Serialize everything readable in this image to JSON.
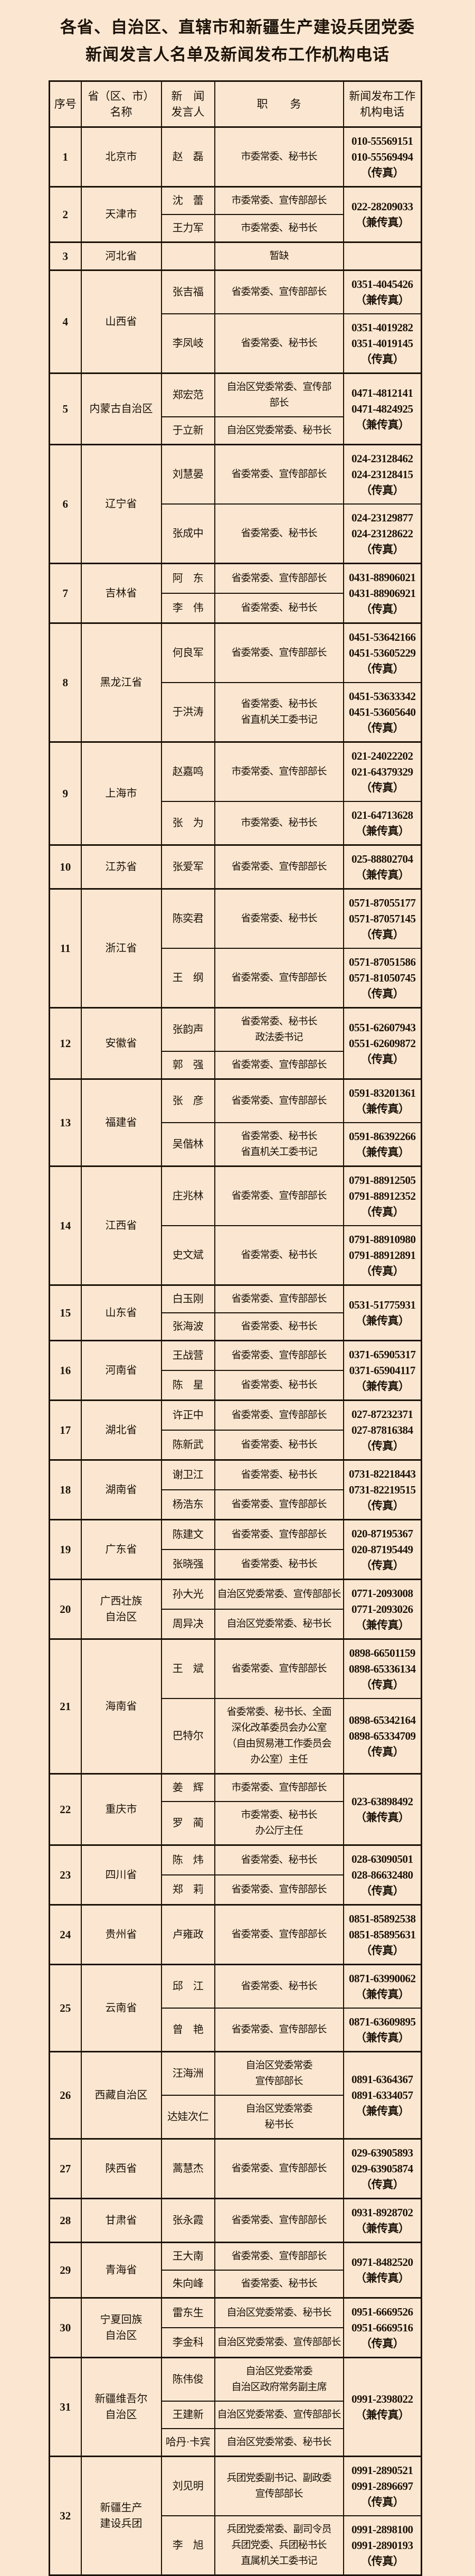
{
  "page": {
    "background_color": "#fbe7d1",
    "text_color": "#1c1208",
    "border_color": "#1c1208"
  },
  "title": {
    "line1": "各省、自治区、直辖市和新疆生产建设兵团党委",
    "line2": "新闻发言人名单及新闻发布工作机构电话"
  },
  "table": {
    "headers": [
      {
        "id": "no",
        "lines": [
          "序号"
        ]
      },
      {
        "id": "region",
        "lines": [
          "省（区、市）",
          "名称"
        ]
      },
      {
        "id": "spokesperson",
        "lines": [
          "新　闻",
          "发言人"
        ]
      },
      {
        "id": "position",
        "lines": [
          "职　　务"
        ]
      },
      {
        "id": "phone",
        "lines": [
          "新闻发布工作",
          "机构电话"
        ]
      }
    ],
    "rows": [
      {
        "no": "1",
        "region": [
          "北京市"
        ],
        "phone": null,
        "entries": [
          {
            "name": "赵　磊",
            "position": [
              "市委常委、秘书长"
            ],
            "phone": [
              "010-55569151",
              "010-55569494",
              "（传真）"
            ]
          }
        ]
      },
      {
        "no": "2",
        "region": [
          "天津市"
        ],
        "phone": [
          "022-28209033",
          "（兼传真）"
        ],
        "entries": [
          {
            "name": "沈　蕾",
            "position": [
              "市委常委、宣传部部长"
            ],
            "phone": null
          },
          {
            "name": "王力军",
            "position": [
              "市委常委、秘书长"
            ],
            "phone": null
          }
        ]
      },
      {
        "no": "3",
        "region": [
          "河北省"
        ],
        "phone": null,
        "entries": [
          {
            "name": "",
            "position": [
              "暂缺"
            ],
            "phone": []
          }
        ]
      },
      {
        "no": "4",
        "region": [
          "山西省"
        ],
        "phone": null,
        "entries": [
          {
            "name": "张吉福",
            "position": [
              "省委常委、宣传部部长"
            ],
            "phone": [
              "0351-4045426",
              "（兼传真）"
            ]
          },
          {
            "name": "李凤岐",
            "position": [
              "省委常委、秘书长"
            ],
            "phone": [
              "0351-4019282",
              "0351-4019145",
              "（传真）"
            ]
          }
        ]
      },
      {
        "no": "5",
        "region": [
          "内蒙古自治区"
        ],
        "phone": [
          "0471-4812141",
          "0471-4824925",
          "（兼传真）"
        ],
        "entries": [
          {
            "name": "郑宏范",
            "position": [
              "自治区党委常委、宣传部",
              "部长"
            ],
            "phone": null
          },
          {
            "name": "于立新",
            "position": [
              "自治区党委常委、秘书长"
            ],
            "phone": null
          }
        ]
      },
      {
        "no": "6",
        "region": [
          "辽宁省"
        ],
        "phone": null,
        "entries": [
          {
            "name": "刘慧晏",
            "position": [
              "省委常委、宣传部部长"
            ],
            "phone": [
              "024-23128462",
              "024-23128415",
              "（传真）"
            ]
          },
          {
            "name": "张成中",
            "position": [
              "省委常委、秘书长"
            ],
            "phone": [
              "024-23129877",
              "024-23128622",
              "（传真）"
            ]
          }
        ]
      },
      {
        "no": "7",
        "region": [
          "吉林省"
        ],
        "phone": [
          "0431-88906021",
          "0431-88906921",
          "（传真）"
        ],
        "entries": [
          {
            "name": "阿　东",
            "position": [
              "省委常委、宣传部部长"
            ],
            "phone": null
          },
          {
            "name": "李　伟",
            "position": [
              "省委常委、秘书长"
            ],
            "phone": null
          }
        ]
      },
      {
        "no": "8",
        "region": [
          "黑龙江省"
        ],
        "phone": null,
        "entries": [
          {
            "name": "何良军",
            "position": [
              "省委常委、宣传部部长"
            ],
            "phone": [
              "0451-53642166",
              "0451-53605229",
              "（传真）"
            ]
          },
          {
            "name": "于洪涛",
            "position": [
              "省委常委、秘书长",
              "省直机关工委书记"
            ],
            "phone": [
              "0451-53633342",
              "0451-53605640",
              "（传真）"
            ]
          }
        ]
      },
      {
        "no": "9",
        "region": [
          "上海市"
        ],
        "phone": null,
        "entries": [
          {
            "name": "赵嘉鸣",
            "position": [
              "市委常委、宣传部部长"
            ],
            "phone": [
              "021-24022202",
              "021-64379329",
              "（传真）"
            ]
          },
          {
            "name": "张　为",
            "position": [
              "市委常委、秘书长"
            ],
            "phone": [
              "021-64713628",
              "（兼传真）"
            ]
          }
        ]
      },
      {
        "no": "10",
        "region": [
          "江苏省"
        ],
        "phone": null,
        "entries": [
          {
            "name": "张爱军",
            "position": [
              "省委常委、宣传部部长"
            ],
            "phone": [
              "025-88802704",
              "（兼传真）"
            ]
          }
        ]
      },
      {
        "no": "11",
        "region": [
          "浙江省"
        ],
        "phone": null,
        "entries": [
          {
            "name": "陈奕君",
            "position": [
              "省委常委、秘书长"
            ],
            "phone": [
              "0571-87055177",
              "0571-87057145",
              "（传真）"
            ]
          },
          {
            "name": "王　纲",
            "position": [
              "省委常委、宣传部部长"
            ],
            "phone": [
              "0571-87051586",
              "0571-81050745",
              "（传真）"
            ]
          }
        ]
      },
      {
        "no": "12",
        "region": [
          "安徽省"
        ],
        "phone": [
          "0551-62607943",
          "0551-62609872",
          "（传真）"
        ],
        "entries": [
          {
            "name": "张韵声",
            "position": [
              "省委常委、秘书长",
              "政法委书记"
            ],
            "phone": null
          },
          {
            "name": "郭　强",
            "position": [
              "省委常委、宣传部部长"
            ],
            "phone": null
          }
        ]
      },
      {
        "no": "13",
        "region": [
          "福建省"
        ],
        "phone": null,
        "entries": [
          {
            "name": "张　彦",
            "position": [
              "省委常委、宣传部部长"
            ],
            "phone": [
              "0591-83201361",
              "（兼传真）"
            ]
          },
          {
            "name": "吴偕林",
            "position": [
              "省委常委、秘书长",
              "省直机关工委书记"
            ],
            "phone": [
              "0591-86392266",
              "（兼传真）"
            ]
          }
        ]
      },
      {
        "no": "14",
        "region": [
          "江西省"
        ],
        "phone": null,
        "entries": [
          {
            "name": "庄兆林",
            "position": [
              "省委常委、宣传部部长"
            ],
            "phone": [
              "0791-88912505",
              "0791-88912352",
              "（传真）"
            ]
          },
          {
            "name": "史文斌",
            "position": [
              "省委常委、秘书长"
            ],
            "phone": [
              "0791-88910980",
              "0791-88912891",
              "（传真）"
            ]
          }
        ]
      },
      {
        "no": "15",
        "region": [
          "山东省"
        ],
        "phone": [
          "0531-51775931",
          "（兼传真）"
        ],
        "entries": [
          {
            "name": "白玉刚",
            "position": [
              "省委常委、宣传部部长"
            ],
            "phone": null
          },
          {
            "name": "张海波",
            "position": [
              "省委常委、秘书长"
            ],
            "phone": null
          }
        ]
      },
      {
        "no": "16",
        "region": [
          "河南省"
        ],
        "phone": [
          "0371-65905317",
          "0371-65904117",
          "（兼传真）"
        ],
        "entries": [
          {
            "name": "王战营",
            "position": [
              "省委常委、宣传部部长"
            ],
            "phone": null
          },
          {
            "name": "陈　星",
            "position": [
              "省委常委、秘书长"
            ],
            "phone": null
          }
        ]
      },
      {
        "no": "17",
        "region": [
          "湖北省"
        ],
        "phone": [
          "027-87232371",
          "027-87816384",
          "（传真）"
        ],
        "entries": [
          {
            "name": "许正中",
            "position": [
              "省委常委、宣传部部长"
            ],
            "phone": null
          },
          {
            "name": "陈新武",
            "position": [
              "省委常委、秘书长"
            ],
            "phone": null
          }
        ]
      },
      {
        "no": "18",
        "region": [
          "湖南省"
        ],
        "phone": [
          "0731-82218443",
          "0731-82219515",
          "（传真）"
        ],
        "entries": [
          {
            "name": "谢卫江",
            "position": [
              "省委常委、秘书长"
            ],
            "phone": null
          },
          {
            "name": "杨浩东",
            "position": [
              "省委常委、宣传部部长"
            ],
            "phone": null
          }
        ]
      },
      {
        "no": "19",
        "region": [
          "广东省"
        ],
        "phone": [
          "020-87195367",
          "020-87195449",
          "（传真）"
        ],
        "entries": [
          {
            "name": "陈建文",
            "position": [
              "省委常委、宣传部部长"
            ],
            "phone": null
          },
          {
            "name": "张晓强",
            "position": [
              "省委常委、秘书长"
            ],
            "phone": null
          }
        ]
      },
      {
        "no": "20",
        "region": [
          "广西壮族",
          "自治区"
        ],
        "phone": [
          "0771-2093008",
          "0771-2093026",
          "（兼传真）"
        ],
        "entries": [
          {
            "name": "孙大光",
            "position": [
              "自治区党委常委、宣传部部长"
            ],
            "phone": null
          },
          {
            "name": "周异决",
            "position": [
              "自治区党委常委、秘书长"
            ],
            "phone": null
          }
        ]
      },
      {
        "no": "21",
        "region": [
          "海南省"
        ],
        "phone": null,
        "entries": [
          {
            "name": "王　斌",
            "position": [
              "省委常委、宣传部部长"
            ],
            "phone": [
              "0898-66501159",
              "0898-65336134",
              "（传真）"
            ]
          },
          {
            "name": "巴特尔",
            "position": [
              "省委常委、秘书长、全面",
              "深化改革委员会办公室",
              "（自由贸易港工作委员会",
              "办公室）主任"
            ],
            "phone": [
              "0898-65342164",
              "0898-65334709",
              "（传真）"
            ]
          }
        ]
      },
      {
        "no": "22",
        "region": [
          "重庆市"
        ],
        "phone": [
          "023-63898492",
          "（兼传真）"
        ],
        "entries": [
          {
            "name": "姜　辉",
            "position": [
              "市委常委、宣传部部长"
            ],
            "phone": null
          },
          {
            "name": "罗　蔺",
            "position": [
              "市委常委、秘书长",
              "办公厅主任"
            ],
            "phone": null
          }
        ]
      },
      {
        "no": "23",
        "region": [
          "四川省"
        ],
        "phone": [
          "028-63090501",
          "028-86632480",
          "（传真）"
        ],
        "entries": [
          {
            "name": "陈　炜",
            "position": [
              "省委常委、秘书长"
            ],
            "phone": null
          },
          {
            "name": "郑　莉",
            "position": [
              "省委常委、宣传部部长"
            ],
            "phone": null
          }
        ]
      },
      {
        "no": "24",
        "region": [
          "贵州省"
        ],
        "phone": null,
        "entries": [
          {
            "name": "卢雍政",
            "position": [
              "省委常委、宣传部部长"
            ],
            "phone": [
              "0851-85892538",
              "0851-85895631",
              "（传真）"
            ]
          }
        ]
      },
      {
        "no": "25",
        "region": [
          "云南省"
        ],
        "phone": null,
        "entries": [
          {
            "name": "邱　江",
            "position": [
              "省委常委、秘书长"
            ],
            "phone": [
              "0871-63990062",
              "（兼传真）"
            ]
          },
          {
            "name": "曾　艳",
            "position": [
              "省委常委、宣传部部长"
            ],
            "phone": [
              "0871-63609895",
              "（兼传真）"
            ]
          }
        ]
      },
      {
        "no": "26",
        "region": [
          "西藏自治区"
        ],
        "phone": [
          "0891-6364367",
          "0891-6334057",
          "（兼传真）"
        ],
        "entries": [
          {
            "name": "汪海洲",
            "position": [
              "自治区党委常委",
              "宣传部部长"
            ],
            "phone": null
          },
          {
            "name": "达娃次仁",
            "position": [
              "自治区党委常委",
              "秘书长"
            ],
            "phone": null
          }
        ]
      },
      {
        "no": "27",
        "region": [
          "陕西省"
        ],
        "phone": null,
        "entries": [
          {
            "name": "蒿慧杰",
            "position": [
              "省委常委、宣传部部长"
            ],
            "phone": [
              "029-63905893",
              "029-63905874",
              "（传真）"
            ]
          }
        ]
      },
      {
        "no": "28",
        "region": [
          "甘肃省"
        ],
        "phone": null,
        "entries": [
          {
            "name": "张永霞",
            "position": [
              "省委常委、宣传部部长"
            ],
            "phone": [
              "0931-8928702",
              "（兼传真）"
            ]
          }
        ]
      },
      {
        "no": "29",
        "region": [
          "青海省"
        ],
        "phone": [
          "0971-8482520",
          "（兼传真）"
        ],
        "entries": [
          {
            "name": "王大南",
            "position": [
              "省委常委、宣传部部长"
            ],
            "phone": null
          },
          {
            "name": "朱向峰",
            "position": [
              "省委常委、秘书长"
            ],
            "phone": null
          }
        ]
      },
      {
        "no": "30",
        "region": [
          "宁夏回族",
          "自治区"
        ],
        "phone": [
          "0951-6669526",
          "0951-6669516",
          "（传真）"
        ],
        "entries": [
          {
            "name": "雷东生",
            "position": [
              "自治区党委常委、秘书长"
            ],
            "phone": null
          },
          {
            "name": "李金科",
            "position": [
              "自治区党委常委、宣传部部长"
            ],
            "phone": null
          }
        ]
      },
      {
        "no": "31",
        "region": [
          "新疆维吾尔",
          "自治区"
        ],
        "phone": [
          "0991-2398022",
          "（兼传真）"
        ],
        "entries": [
          {
            "name": "陈伟俊",
            "position": [
              "自治区党委常委",
              "自治区政府常务副主席"
            ],
            "phone": null
          },
          {
            "name": "王建新",
            "position": [
              "自治区党委常委、宣传部部长"
            ],
            "phone": null
          },
          {
            "name": "哈丹·卡宾",
            "position": [
              "自治区党委常委、秘书长"
            ],
            "phone": null
          }
        ]
      },
      {
        "no": "32",
        "region": [
          "新疆生产",
          "建设兵团"
        ],
        "phone": null,
        "entries": [
          {
            "name": "刘见明",
            "position": [
              "兵团党委副书记、副政委",
              "宣传部部长"
            ],
            "phone": [
              "0991-2890521",
              "0991-2896697",
              "（传真）"
            ]
          },
          {
            "name": "李　旭",
            "position": [
              "兵团党委常委、副司令员",
              "兵团党委、兵团秘书长",
              "直属机关工委书记"
            ],
            "phone": [
              "0991-2898100",
              "0991-2890193",
              "（传真）"
            ]
          }
        ]
      }
    ]
  }
}
